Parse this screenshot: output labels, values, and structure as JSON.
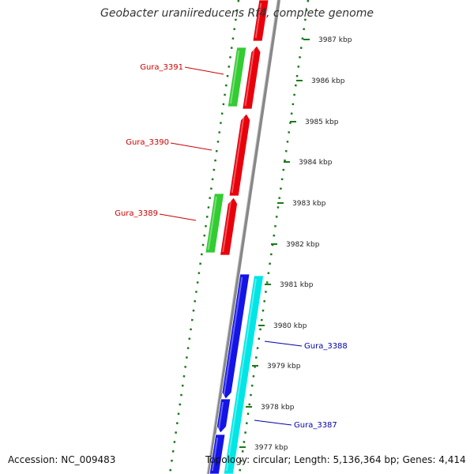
{
  "header": {
    "title": "Geobacter uraniireducens Rf4, complete genome"
  },
  "footer": {
    "accession": "Accession: NC_009483",
    "summary": "Topology: circular; Length: 5,136,364 bp; Genes: 4,414"
  },
  "ruler": {
    "ticks": [
      "3987 kbp",
      "3986 kbp",
      "3985 kbp",
      "3984 kbp",
      "3983 kbp",
      "3982 kbp",
      "3981 kbp",
      "3980 kbp",
      "3979 kbp",
      "3978 kbp",
      "3977 kbp"
    ]
  },
  "gene_labels": [
    "Gura_3391",
    "Gura_3390",
    "Gura_3389",
    "Gura_3388",
    "Gura_3387"
  ],
  "colors": {
    "forward_gene": "#e8000b",
    "reverse_gene": "#1414e6",
    "forward_rna": "#33cc33",
    "reverse_rna": "#00e5e5",
    "backbone": "#888888",
    "ruler_dots": "#1a7a1a",
    "forward_label": "#cc0000",
    "reverse_label": "#0000aa"
  }
}
